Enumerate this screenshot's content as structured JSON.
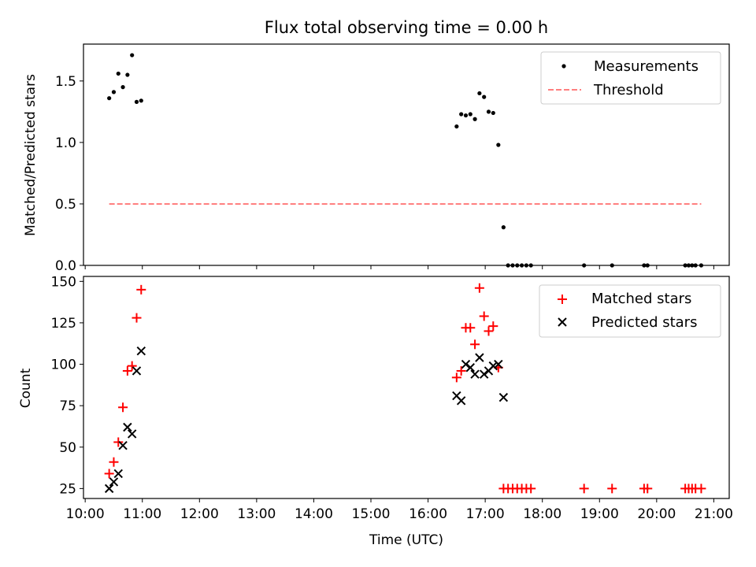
{
  "chart_data": [
    {
      "type": "scatter",
      "title": "Flux total observing time = 0.00 h",
      "xlabel": "",
      "ylabel": "Matched/Predicted stars",
      "xlim": [
        9.97,
        21.27
      ],
      "ylim": [
        0.0,
        1.8
      ],
      "yticks": [
        0.0,
        0.5,
        1.0,
        1.5
      ],
      "ytick_labels": [
        "0.0",
        "0.5",
        "1.0",
        "1.5"
      ],
      "grid": false,
      "legend_position": "top-right",
      "series": [
        {
          "name": "Measurements",
          "marker": "dot",
          "color": "#000000",
          "points": [
            [
              10.42,
              1.36
            ],
            [
              10.5,
              1.41
            ],
            [
              10.58,
              1.56
            ],
            [
              10.66,
              1.45
            ],
            [
              10.74,
              1.55
            ],
            [
              10.82,
              1.71
            ],
            [
              10.9,
              1.33
            ],
            [
              10.98,
              1.34
            ],
            [
              16.5,
              1.13
            ],
            [
              16.58,
              1.23
            ],
            [
              16.66,
              1.22
            ],
            [
              16.74,
              1.23
            ],
            [
              16.82,
              1.19
            ],
            [
              16.9,
              1.4
            ],
            [
              16.98,
              1.37
            ],
            [
              17.06,
              1.25
            ],
            [
              17.14,
              1.24
            ],
            [
              17.23,
              0.98
            ],
            [
              17.32,
              0.31
            ],
            [
              17.4,
              0.0
            ],
            [
              17.48,
              0.0
            ],
            [
              17.56,
              0.0
            ],
            [
              17.64,
              0.0
            ],
            [
              17.72,
              0.0
            ],
            [
              17.8,
              0.0
            ],
            [
              18.73,
              0.0
            ],
            [
              19.22,
              0.0
            ],
            [
              19.78,
              0.0
            ],
            [
              19.84,
              0.0
            ],
            [
              20.5,
              0.0
            ],
            [
              20.56,
              0.0
            ],
            [
              20.62,
              0.0
            ],
            [
              20.68,
              0.0
            ],
            [
              20.78,
              0.0
            ]
          ]
        },
        {
          "name": "Threshold",
          "line_style": "dashed",
          "color": "#ff7f7f",
          "x": [
            10.42,
            20.78
          ],
          "y": [
            0.5,
            0.5
          ]
        }
      ]
    },
    {
      "type": "scatter",
      "title": "",
      "xlabel": "Time (UTC)",
      "ylabel": "Count",
      "xlim": [
        9.97,
        21.27
      ],
      "ylim": [
        19,
        153
      ],
      "yticks": [
        25,
        50,
        75,
        100,
        125,
        150
      ],
      "ytick_labels": [
        "25",
        "50",
        "75",
        "100",
        "125",
        "150"
      ],
      "xticks": [
        10,
        11,
        12,
        13,
        14,
        15,
        16,
        17,
        18,
        19,
        20,
        21
      ],
      "xtick_labels": [
        "10:00",
        "11:00",
        "12:00",
        "13:00",
        "14:00",
        "15:00",
        "16:00",
        "17:00",
        "18:00",
        "19:00",
        "20:00",
        "21:00"
      ],
      "grid": false,
      "legend_position": "top-right",
      "series": [
        {
          "name": "Matched stars",
          "marker": "plus",
          "color": "#ff0000",
          "points": [
            [
              10.42,
              34
            ],
            [
              10.5,
              41
            ],
            [
              10.58,
              53
            ],
            [
              10.66,
              74
            ],
            [
              10.74,
              96
            ],
            [
              10.82,
              99
            ],
            [
              10.9,
              128
            ],
            [
              10.98,
              145
            ],
            [
              16.5,
              92
            ],
            [
              16.58,
              96
            ],
            [
              16.66,
              122
            ],
            [
              16.74,
              122
            ],
            [
              16.82,
              112
            ],
            [
              16.9,
              146
            ],
            [
              16.98,
              129
            ],
            [
              17.06,
              120
            ],
            [
              17.14,
              123
            ],
            [
              17.23,
              98
            ],
            [
              17.32,
              25
            ],
            [
              17.4,
              25
            ],
            [
              17.48,
              25
            ],
            [
              17.56,
              25
            ],
            [
              17.64,
              25
            ],
            [
              17.72,
              25
            ],
            [
              17.8,
              25
            ],
            [
              18.73,
              25
            ],
            [
              19.22,
              25
            ],
            [
              19.78,
              25
            ],
            [
              19.84,
              25
            ],
            [
              20.5,
              25
            ],
            [
              20.56,
              25
            ],
            [
              20.62,
              25
            ],
            [
              20.68,
              25
            ],
            [
              20.78,
              25
            ]
          ]
        },
        {
          "name": "Predicted stars",
          "marker": "x",
          "color": "#000000",
          "points": [
            [
              10.42,
              25
            ],
            [
              10.5,
              29
            ],
            [
              10.58,
              34
            ],
            [
              10.66,
              51
            ],
            [
              10.74,
              62
            ],
            [
              10.82,
              58
            ],
            [
              10.9,
              96
            ],
            [
              10.98,
              108
            ],
            [
              16.5,
              81
            ],
            [
              16.58,
              78
            ],
            [
              16.66,
              100
            ],
            [
              16.74,
              98
            ],
            [
              16.82,
              94
            ],
            [
              16.9,
              104
            ],
            [
              16.98,
              94
            ],
            [
              17.06,
              96
            ],
            [
              17.14,
              99
            ],
            [
              17.23,
              100
            ],
            [
              17.32,
              80
            ]
          ]
        }
      ]
    }
  ]
}
